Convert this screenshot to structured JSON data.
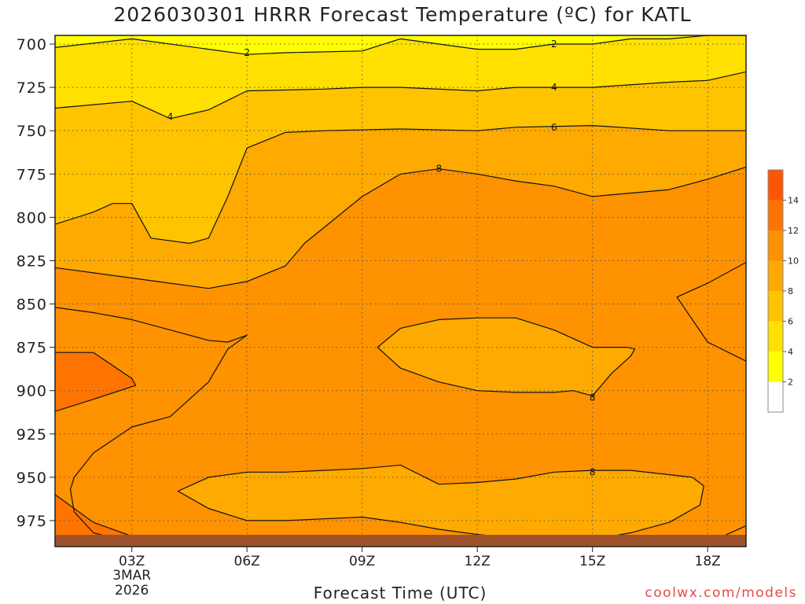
{
  "chart_data": {
    "type": "heatmap",
    "title": "2026030301 HRRR Forecast Temperature (ºC) for KATL",
    "xlabel": "Forecast Time (UTC)",
    "ylabel": "",
    "credit": "coolwx.com/models",
    "y_ticks": [
      "700",
      "725",
      "750",
      "775",
      "800",
      "825",
      "850",
      "875",
      "900",
      "925",
      "950",
      "975"
    ],
    "y_tick_values": [
      700,
      725,
      750,
      775,
      800,
      825,
      850,
      875,
      900,
      925,
      950,
      975
    ],
    "ylim": [
      695,
      990
    ],
    "y_direction": "pressure decreasing upward",
    "x_ticks": [
      "03Z",
      "06Z",
      "09Z",
      "12Z",
      "15Z",
      "18Z"
    ],
    "x_tick_values": [
      3,
      6,
      9,
      12,
      15,
      18
    ],
    "xlim": [
      1,
      19
    ],
    "x_date_label": [
      "3MAR",
      "2026"
    ],
    "grid": true,
    "colorbar": {
      "levels": [
        2,
        4,
        6,
        8,
        10,
        12,
        14
      ],
      "colors": [
        "#ffffff",
        "#ffff00",
        "#ffe000",
        "#ffc400",
        "#ffaa00",
        "#ff9200",
        "#ff7400",
        "#ff5500"
      ]
    },
    "contour_labels": [
      {
        "text": "2",
        "x": 6.0,
        "y": 705
      },
      {
        "text": "2",
        "x": 14.0,
        "y": 700
      },
      {
        "text": "4",
        "x": 4.0,
        "y": 742
      },
      {
        "text": "4",
        "x": 14.0,
        "y": 725
      },
      {
        "text": "6",
        "x": 14.0,
        "y": 748
      },
      {
        "text": "8",
        "x": 11.0,
        "y": 772
      },
      {
        "text": "8",
        "x": 15.0,
        "y": 904
      },
      {
        "text": "8",
        "x": 15.0,
        "y": 947
      }
    ],
    "series": [
      {
        "name": "2",
        "x": [
          1.0,
          3.0,
          5.0,
          6.0,
          7.0,
          9.0,
          10.0,
          11.0,
          12.0,
          13.0,
          14.0,
          15.0,
          16.0,
          17.0,
          18.0,
          19.0
        ],
        "y": [
          702,
          697,
          703,
          706,
          705,
          704,
          697,
          700,
          703,
          703,
          700,
          700,
          697,
          697,
          695,
          695
        ]
      },
      {
        "name": "4",
        "x": [
          1.0,
          2.0,
          3.0,
          4.0,
          5.0,
          6.0,
          8.0,
          9.0,
          10.0,
          12.0,
          13.0,
          14.0,
          15.0,
          17.0,
          18.0,
          19.0
        ],
        "y": [
          737,
          735,
          733,
          743,
          738,
          727,
          726,
          725,
          725,
          727,
          725,
          725,
          725,
          722,
          721,
          716
        ]
      },
      {
        "name": "6",
        "x": [
          1.0,
          2.0,
          2.5,
          3.0,
          3.5,
          4.5,
          5.0,
          5.5,
          6.0,
          7.0,
          8.0,
          10.0,
          12.0,
          13.0,
          15.0,
          17.0,
          19.0
        ],
        "y": [
          804,
          797,
          792,
          792,
          812,
          815,
          812,
          788,
          760,
          751,
          750,
          749,
          750,
          748,
          747,
          750,
          750
        ]
      },
      {
        "name": "8",
        "x": [
          1.0,
          2.0,
          4.0,
          5.0,
          6.0,
          7.0,
          7.5,
          8.0,
          9.0,
          10.0,
          11.0,
          12.0,
          13.0,
          14.0,
          15.0,
          16.0,
          17.0,
          18.0,
          19.0
        ],
        "y": [
          829,
          832,
          838,
          841,
          837,
          828,
          815,
          806,
          788,
          775,
          772,
          775,
          779,
          782,
          788,
          786,
          784,
          778,
          771
        ]
      },
      {
        "name": "8b",
        "x": [
          9.4,
          10.0,
          11.0,
          12.0,
          13.0,
          14.0,
          14.5,
          15.0,
          15.5,
          16.0,
          16.1,
          15.9,
          15.0,
          14.0,
          13.0,
          12.0,
          11.0,
          10.0,
          9.4
        ],
        "y": [
          875,
          887,
          895,
          900,
          901,
          901,
          900,
          903,
          890,
          880,
          876,
          875,
          875,
          865,
          858,
          858,
          859,
          864,
          875
        ]
      },
      {
        "name": "8c",
        "x": [
          4.2,
          5.0,
          6.0,
          7.0,
          8.0,
          9.0,
          10.0,
          11.0,
          12.0,
          13.0,
          14.0,
          15.0,
          16.0,
          17.0,
          17.8,
          17.9,
          17.6,
          16.0,
          15.0,
          14.0,
          13.0,
          12.0,
          11.0,
          10.0,
          9.0,
          8.0,
          7.0,
          6.0,
          5.0,
          4.2
        ],
        "y": [
          958,
          968,
          975,
          975,
          974,
          973,
          976,
          980,
          983,
          985,
          986,
          986,
          982,
          976,
          966,
          955,
          950,
          946,
          946,
          947,
          951,
          953,
          954,
          943,
          945,
          946,
          947,
          947,
          950,
          958
        ]
      },
      {
        "name": "10",
        "x": [
          1.0,
          2.0,
          3.0,
          4.0,
          5.0,
          5.5,
          6.0,
          5.5,
          5.0,
          4.0,
          3.0,
          2.0,
          1.5,
          1.4,
          1.5,
          2.0,
          3.0,
          4.0,
          5.0,
          6.0,
          7.0,
          8.0,
          9.0,
          10.0,
          11.0,
          12.0,
          13.0,
          14.0,
          15.0,
          16.0,
          17.0,
          17.5,
          18.0,
          19.0
        ],
        "y": [
          852,
          855,
          859,
          865,
          871,
          872,
          868,
          876,
          895,
          915,
          921,
          936,
          950,
          957,
          970,
          982,
          988,
          990,
          990,
          990,
          990,
          990,
          990,
          990,
          990,
          990,
          990,
          990,
          990,
          990,
          990,
          990,
          988,
          978
        ]
      },
      {
        "name": "10b",
        "x": [
          19.0,
          18.0,
          17.2,
          18.0,
          19.0
        ],
        "y": [
          826,
          838,
          846,
          872,
          883
        ]
      },
      {
        "name": "12",
        "x": [
          1.0,
          2.0,
          3.0,
          3.1,
          2.0,
          1.0
        ],
        "y": [
          878,
          878,
          893,
          897,
          905,
          912
        ]
      },
      {
        "name": "12b",
        "x": [
          1.0,
          2.0,
          3.0,
          4.0
        ],
        "y": [
          960,
          976,
          984,
          988
        ]
      }
    ]
  }
}
